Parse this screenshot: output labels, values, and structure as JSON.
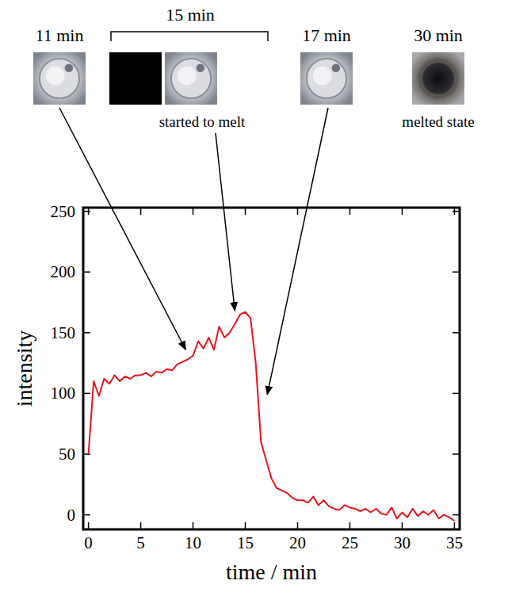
{
  "chart_data": {
    "type": "line",
    "x_label": "time / min",
    "y_label": "intensity",
    "xlim": [
      -0.5,
      35.5
    ],
    "ylim": [
      -12,
      253
    ],
    "xticks": [
      0,
      5,
      10,
      15,
      20,
      25,
      30,
      35
    ],
    "yticks": [
      0,
      50,
      100,
      150,
      200,
      250
    ],
    "grid": false,
    "series": [
      {
        "name": "intensity",
        "color": "#e8141b",
        "x": [
          0,
          0.5,
          1,
          1.5,
          2,
          2.5,
          3,
          3.5,
          4,
          4.5,
          5,
          5.5,
          6,
          6.5,
          7,
          7.5,
          8,
          8.5,
          9,
          9.5,
          10,
          10.5,
          11,
          11.5,
          12,
          12.5,
          13,
          13.5,
          14,
          14.5,
          15,
          15.5,
          16,
          16.5,
          17,
          17.5,
          18,
          18.5,
          19,
          19.5,
          20,
          20.5,
          21,
          21.5,
          22,
          22.5,
          23,
          23.5,
          24,
          24.5,
          25,
          25.5,
          26,
          26.5,
          27,
          27.5,
          28,
          28.5,
          29,
          29.5,
          30,
          30.5,
          31,
          31.5,
          32,
          32.5,
          33,
          33.5,
          34,
          34.5,
          35
        ],
        "values": [
          50,
          110,
          98,
          112,
          108,
          115,
          110,
          114,
          112,
          115,
          115,
          117,
          114,
          118,
          117,
          120,
          119,
          124,
          126,
          128,
          131,
          143,
          137,
          146,
          136,
          155,
          146,
          150,
          157,
          165,
          167,
          162,
          125,
          60,
          45,
          30,
          22,
          20,
          18,
          14,
          12,
          12,
          10,
          15,
          8,
          12,
          7,
          5,
          4,
          8,
          6,
          5,
          3,
          5,
          2,
          5,
          1,
          0,
          6,
          -3,
          2,
          -2,
          5,
          -1,
          3,
          0,
          4,
          -3,
          0,
          -2,
          -5
        ]
      }
    ],
    "annotations": [
      {
        "label": "11 min",
        "arrow_to": [
          9.3,
          136
        ]
      },
      {
        "label": "15 min",
        "caption": "started to melt",
        "arrow_to": [
          14,
          168
        ]
      },
      {
        "label": "17 min",
        "arrow_to": [
          17.1,
          99
        ]
      },
      {
        "label": "30 min",
        "caption": "melted state"
      }
    ]
  }
}
